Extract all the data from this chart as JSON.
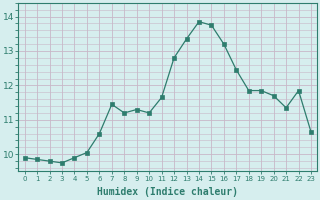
{
  "x": [
    0,
    1,
    2,
    3,
    4,
    5,
    6,
    7,
    8,
    9,
    10,
    11,
    12,
    13,
    14,
    15,
    16,
    17,
    18,
    19,
    20,
    21,
    22,
    23
  ],
  "y": [
    9.9,
    9.85,
    9.8,
    9.75,
    9.9,
    10.05,
    10.6,
    11.45,
    11.2,
    11.3,
    11.2,
    11.65,
    12.8,
    13.35,
    13.85,
    13.75,
    13.2,
    12.45,
    11.85,
    11.85,
    11.7,
    11.35,
    11.85,
    10.65
  ],
  "xlabel": "Humidex (Indice chaleur)",
  "bg_color": "#d6eeee",
  "line_color": "#2e7d6e",
  "marker_color": "#2e7d6e",
  "grid_color_major": "#c8b8c8",
  "grid_color_minor": "#c8b8c8",
  "yticks": [
    10,
    11,
    12,
    13,
    14
  ],
  "xticks": [
    0,
    1,
    2,
    3,
    4,
    5,
    6,
    7,
    8,
    9,
    10,
    11,
    12,
    13,
    14,
    15,
    16,
    17,
    18,
    19,
    20,
    21,
    22,
    23
  ],
  "ylim": [
    9.5,
    14.4
  ],
  "xlim": [
    -0.5,
    23.5
  ],
  "tick_color": "#2e7d6e",
  "xlabel_color": "#2e7d6e",
  "xlabel_fontsize": 7,
  "ytick_fontsize": 6.5,
  "xtick_fontsize": 5.0
}
